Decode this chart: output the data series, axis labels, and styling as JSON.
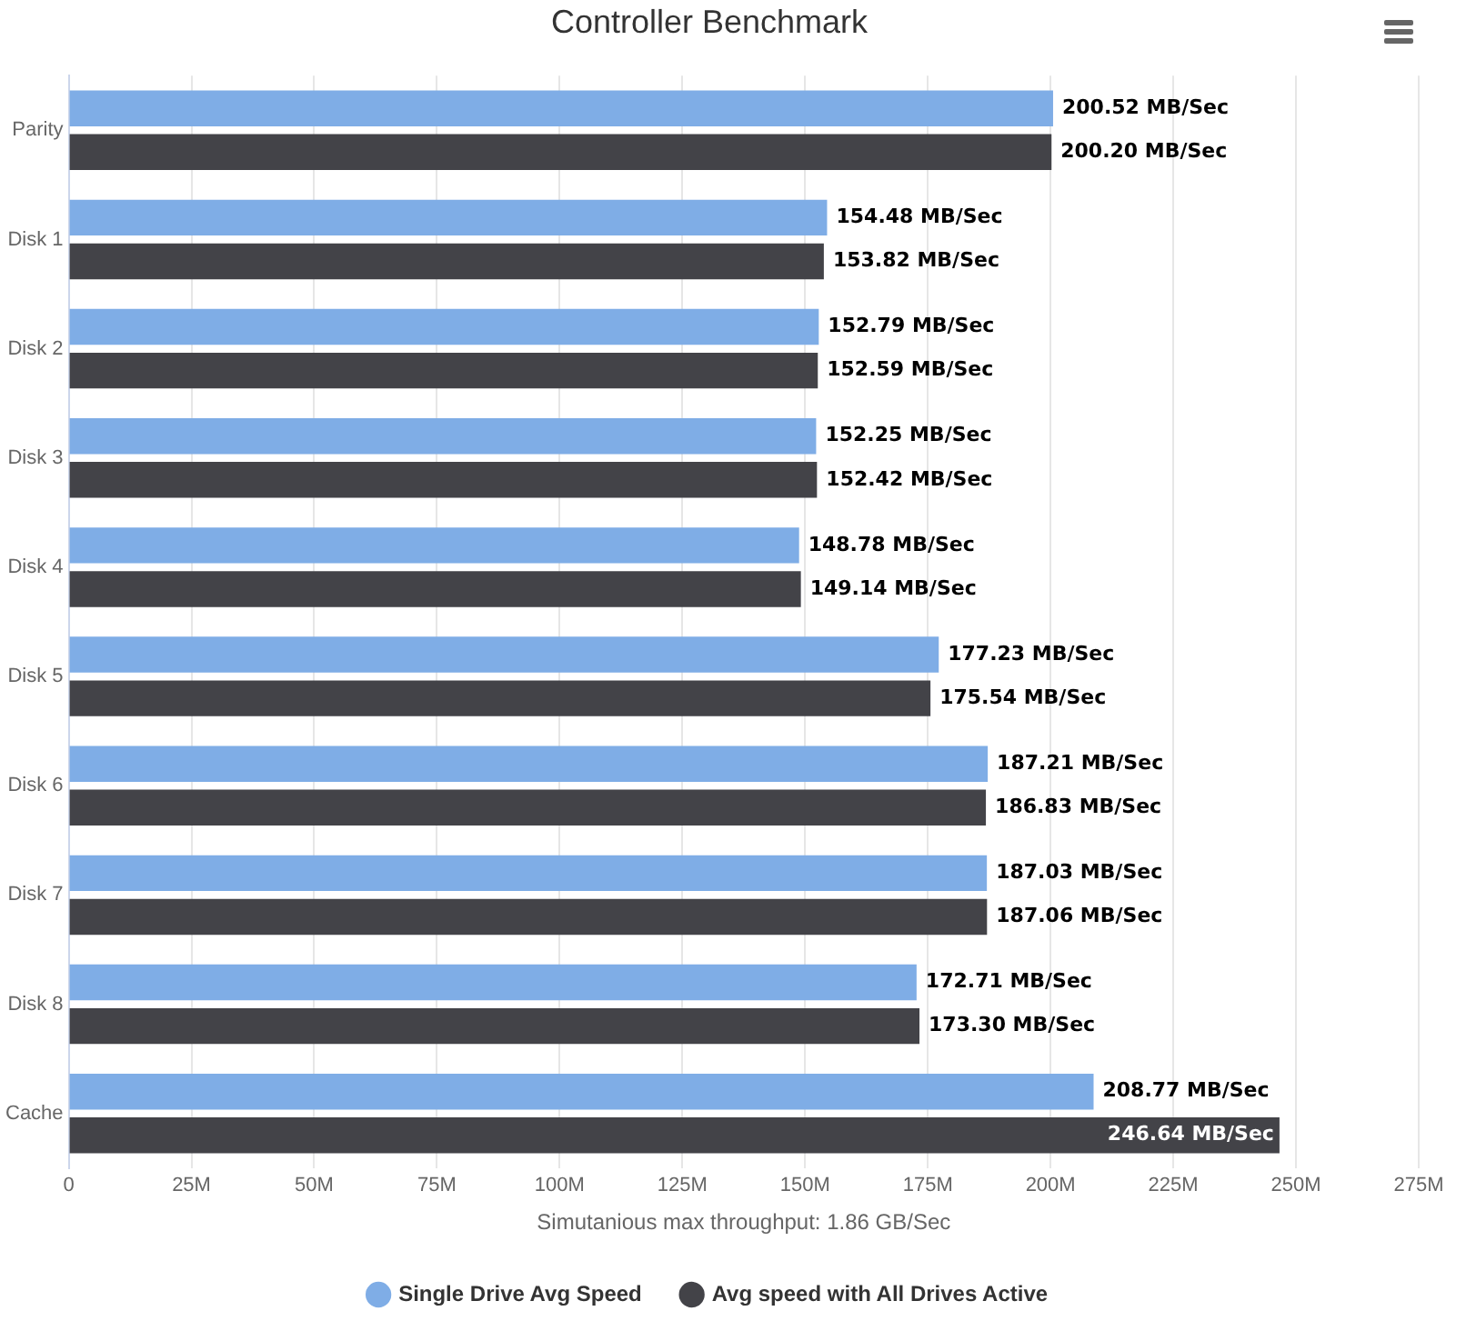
{
  "chart_data": {
    "type": "bar",
    "orientation": "horizontal",
    "title": "Controller Benchmark",
    "xlabel": "Simutanious max throughput: 1.86 GB/Sec",
    "categories": [
      "Parity",
      "Disk 1",
      "Disk 2",
      "Disk 3",
      "Disk 4",
      "Disk 5",
      "Disk 6",
      "Disk 7",
      "Disk 8",
      "Cache"
    ],
    "series": [
      {
        "name": "Single Drive Avg Speed",
        "color": "#7fade6",
        "values": [
          200.52,
          154.48,
          152.79,
          152.25,
          148.78,
          177.23,
          187.21,
          187.03,
          172.71,
          208.77
        ],
        "value_labels": [
          "200.52 MB/Sec",
          "154.48 MB/Sec",
          "152.79 MB/Sec",
          "152.25 MB/Sec",
          "148.78 MB/Sec",
          "177.23 MB/Sec",
          "187.21 MB/Sec",
          "187.03 MB/Sec",
          "172.71 MB/Sec",
          "208.77 MB/Sec"
        ]
      },
      {
        "name": "Avg speed with All Drives Active",
        "color": "#434348",
        "values": [
          200.2,
          153.82,
          152.59,
          152.42,
          149.14,
          175.54,
          186.83,
          187.06,
          173.3,
          246.64
        ],
        "value_labels": [
          "200.20 MB/Sec",
          "153.82 MB/Sec",
          "152.59 MB/Sec",
          "152.42 MB/Sec",
          "149.14 MB/Sec",
          "175.54 MB/Sec",
          "186.83 MB/Sec",
          "187.06 MB/Sec",
          "173.30 MB/Sec",
          "246.64 MB/Sec"
        ]
      }
    ],
    "xlim": [
      0,
      275
    ],
    "xticks": [
      0,
      {
        "value": 25,
        "label": "25M"
      },
      {
        "value": 50,
        "label": "50M"
      },
      {
        "value": 75,
        "label": "75M"
      },
      {
        "value": 100,
        "label": "100M"
      },
      {
        "value": 125,
        "label": "125M"
      },
      {
        "value": 150,
        "label": "150M"
      },
      {
        "value": 175,
        "label": "175M"
      },
      {
        "value": 200,
        "label": "200M"
      },
      {
        "value": 225,
        "label": "225M"
      },
      {
        "value": 250,
        "label": "250M"
      },
      {
        "value": 275,
        "label": "275M"
      }
    ],
    "grid": "x",
    "legend": "bottom",
    "marker": "circle"
  }
}
